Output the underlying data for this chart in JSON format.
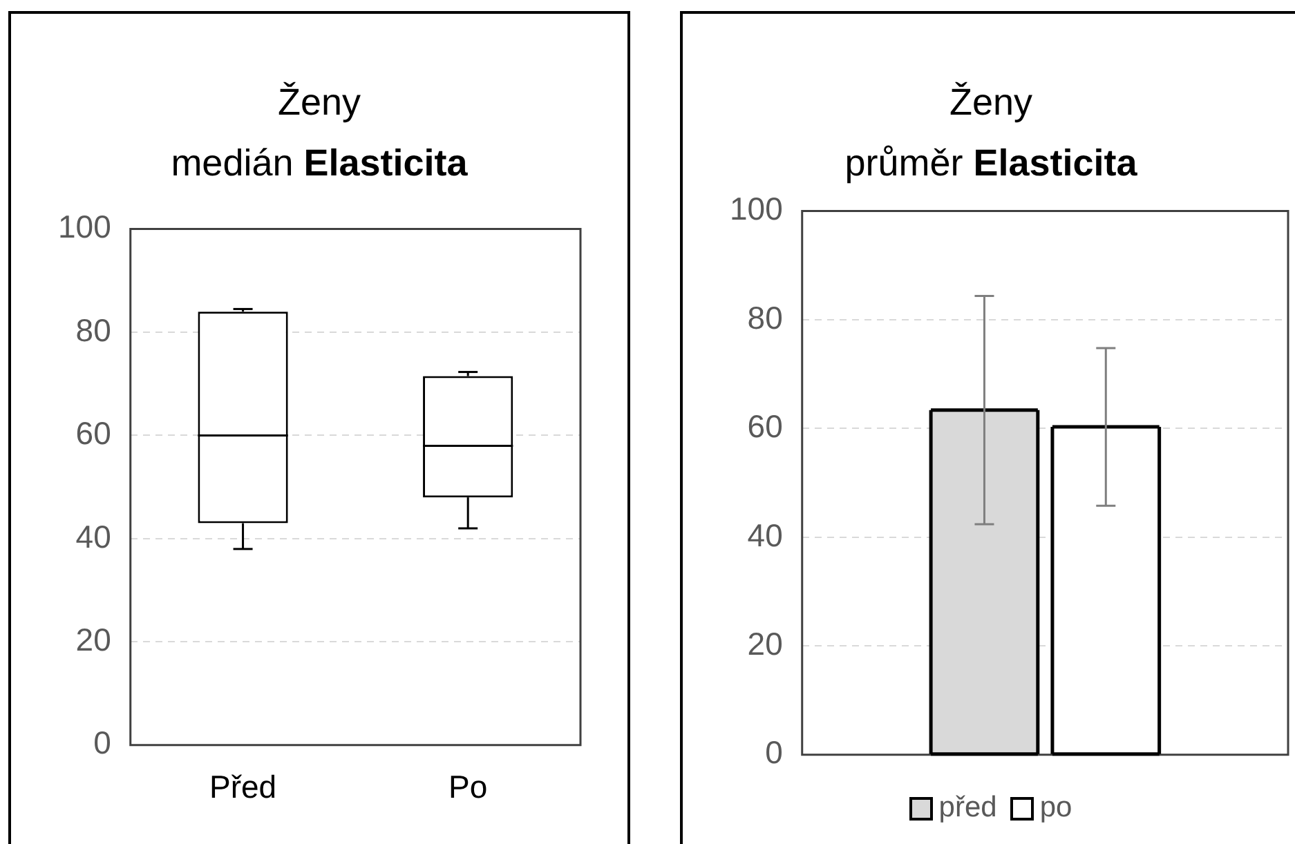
{
  "chart_data": [
    {
      "type": "box",
      "title": "Ženy",
      "subtitle": "medián Elasticita",
      "categories": [
        "Před",
        "Po"
      ],
      "boxes": [
        {
          "low": 38,
          "q1": 43,
          "median": 60,
          "q3": 84,
          "high": 84.5
        },
        {
          "low": 42,
          "q1": 48,
          "median": 58,
          "q3": 71.5,
          "high": 72.3
        }
      ],
      "ylim": [
        0,
        100
      ],
      "yticks": [
        0,
        20,
        40,
        60,
        80,
        100
      ],
      "grid": "y"
    },
    {
      "type": "bar",
      "title": "Ženy",
      "subtitle": "průměr Elasticita",
      "categories": [
        null
      ],
      "series": [
        {
          "name": "před",
          "color": "#d9d9d9",
          "values": [
            63.4
          ],
          "errors": [
            21
          ]
        },
        {
          "name": "po",
          "color": "#ffffff",
          "values": [
            60.3
          ],
          "errors": [
            14.5
          ]
        }
      ],
      "ylim": [
        0,
        100
      ],
      "yticks": [
        0,
        20,
        40,
        60,
        80,
        100
      ],
      "grid": "y",
      "legend": "bottom"
    }
  ]
}
